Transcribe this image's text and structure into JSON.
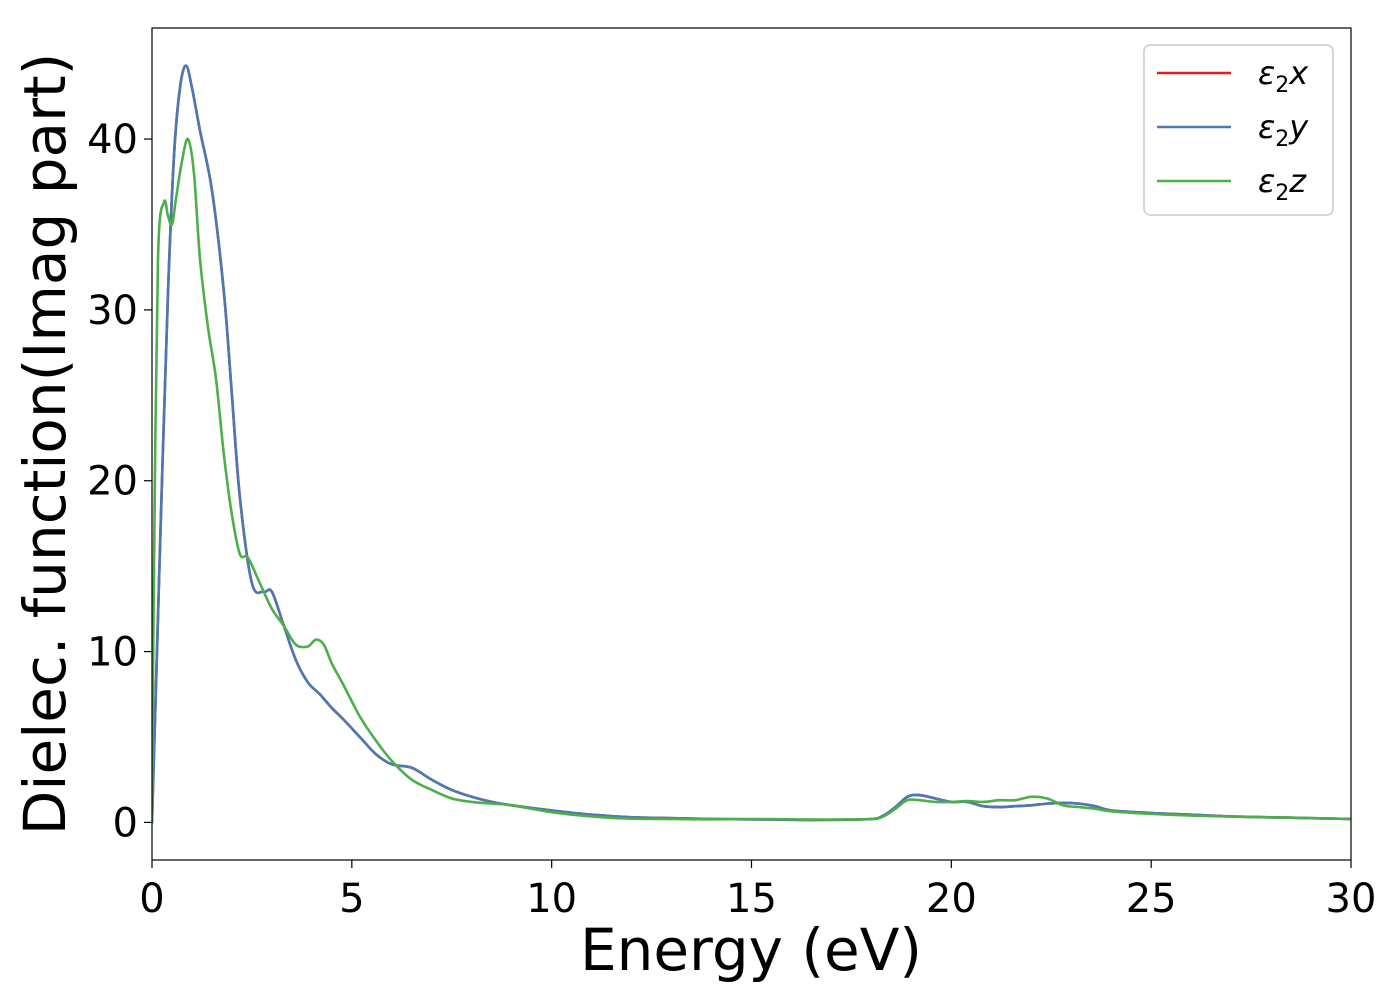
{
  "chart_data": {
    "type": "line",
    "title": "",
    "xlabel": "Energy (eV)",
    "ylabel": "Dielec. function(Imag part)",
    "xlim": [
      0,
      30
    ],
    "ylim": [
      -2.2,
      46.5
    ],
    "xticks": [
      0,
      5,
      10,
      15,
      20,
      25,
      30
    ],
    "yticks": [
      0,
      10,
      20,
      30,
      40
    ],
    "grid": false,
    "legend_position": "top-right",
    "series": [
      {
        "name": "ε₂x",
        "legend_base": "ε",
        "legend_sub": "2",
        "legend_axis": "x",
        "color": "#e41a1c",
        "x": [
          0,
          0.1,
          0.25,
          0.4,
          0.55,
          0.7,
          0.85,
          1.0,
          1.2,
          1.5,
          1.8,
          2.0,
          2.2,
          2.5,
          2.8,
          3.0,
          3.3,
          3.6,
          3.9,
          4.2,
          4.5,
          4.8,
          5.2,
          5.6,
          6.0,
          6.5,
          7.0,
          7.5,
          8.0,
          8.5,
          9.0,
          10,
          11,
          12,
          13,
          14,
          15,
          16,
          17,
          18,
          18.3,
          18.6,
          18.9,
          19.2,
          19.6,
          20.0,
          20.4,
          20.8,
          21.2,
          21.6,
          22.0,
          22.4,
          22.8,
          23.2,
          23.6,
          24.0,
          25,
          26,
          27,
          28,
          29,
          30
        ],
        "y": [
          0,
          8,
          20,
          31,
          39,
          43,
          44.3,
          43,
          40.5,
          37,
          31,
          25,
          19,
          14,
          13.5,
          13.5,
          11.5,
          9.5,
          8.2,
          7.5,
          6.7,
          6,
          5,
          4,
          3.4,
          3.2,
          2.5,
          1.9,
          1.5,
          1.2,
          1.0,
          0.7,
          0.45,
          0.3,
          0.25,
          0.2,
          0.18,
          0.15,
          0.15,
          0.2,
          0.4,
          0.9,
          1.5,
          1.6,
          1.4,
          1.2,
          1.2,
          0.95,
          0.9,
          0.95,
          1.0,
          1.1,
          1.15,
          1.1,
          0.95,
          0.7,
          0.55,
          0.45,
          0.35,
          0.3,
          0.25,
          0.2
        ]
      },
      {
        "name": "ε₂y",
        "legend_base": "ε",
        "legend_sub": "2",
        "legend_axis": "y",
        "color": "#4a7ab5",
        "x": [
          0,
          0.1,
          0.25,
          0.4,
          0.55,
          0.7,
          0.85,
          1.0,
          1.2,
          1.5,
          1.8,
          2.0,
          2.2,
          2.5,
          2.8,
          3.0,
          3.3,
          3.6,
          3.9,
          4.2,
          4.5,
          4.8,
          5.2,
          5.6,
          6.0,
          6.5,
          7.0,
          7.5,
          8.0,
          8.5,
          9.0,
          10,
          11,
          12,
          13,
          14,
          15,
          16,
          17,
          18,
          18.3,
          18.6,
          18.9,
          19.2,
          19.6,
          20.0,
          20.4,
          20.8,
          21.2,
          21.6,
          22.0,
          22.4,
          22.8,
          23.2,
          23.6,
          24.0,
          25,
          26,
          27,
          28,
          29,
          30
        ],
        "y": [
          0,
          8,
          20,
          31,
          39,
          43,
          44.3,
          43,
          40.5,
          37,
          31,
          25,
          19,
          14,
          13.5,
          13.5,
          11.5,
          9.5,
          8.2,
          7.5,
          6.7,
          6,
          5,
          4,
          3.4,
          3.2,
          2.5,
          1.9,
          1.5,
          1.2,
          1.0,
          0.7,
          0.45,
          0.3,
          0.25,
          0.2,
          0.18,
          0.15,
          0.15,
          0.2,
          0.4,
          0.9,
          1.5,
          1.6,
          1.4,
          1.2,
          1.2,
          0.95,
          0.9,
          0.95,
          1.0,
          1.1,
          1.15,
          1.1,
          0.95,
          0.7,
          0.55,
          0.45,
          0.35,
          0.3,
          0.25,
          0.2
        ]
      },
      {
        "name": "ε₂z",
        "legend_base": "ε",
        "legend_sub": "2",
        "legend_axis": "z",
        "color": "#4daf4a",
        "x": [
          0,
          0.05,
          0.15,
          0.3,
          0.4,
          0.5,
          0.6,
          0.75,
          0.9,
          1.05,
          1.2,
          1.4,
          1.6,
          1.8,
          2.0,
          2.2,
          2.4,
          2.7,
          3.0,
          3.3,
          3.6,
          3.9,
          4.1,
          4.3,
          4.5,
          4.8,
          5.2,
          5.6,
          6.0,
          6.5,
          7.0,
          7.5,
          8.0,
          8.5,
          9.0,
          10,
          11,
          12,
          13,
          14,
          15,
          16,
          17,
          18,
          18.3,
          18.6,
          18.9,
          19.2,
          19.6,
          20.0,
          20.4,
          20.8,
          21.2,
          21.6,
          22.0,
          22.4,
          22.8,
          23.2,
          23.6,
          24.0,
          25,
          26,
          27,
          28,
          29,
          30
        ],
        "y": [
          0,
          15,
          33,
          36.3,
          35.5,
          35,
          36.5,
          38.7,
          40,
          38,
          33,
          29,
          26,
          21.5,
          18,
          15.7,
          15.5,
          14,
          12.5,
          11.5,
          10.4,
          10.3,
          10.7,
          10.4,
          9.3,
          8,
          6.2,
          4.8,
          3.6,
          2.5,
          1.9,
          1.4,
          1.2,
          1.1,
          1.0,
          0.6,
          0.35,
          0.22,
          0.2,
          0.18,
          0.2,
          0.18,
          0.17,
          0.2,
          0.35,
          0.8,
          1.3,
          1.3,
          1.2,
          1.2,
          1.25,
          1.2,
          1.3,
          1.3,
          1.5,
          1.4,
          1.0,
          0.9,
          0.8,
          0.65,
          0.5,
          0.4,
          0.35,
          0.3,
          0.25,
          0.2
        ]
      }
    ]
  }
}
